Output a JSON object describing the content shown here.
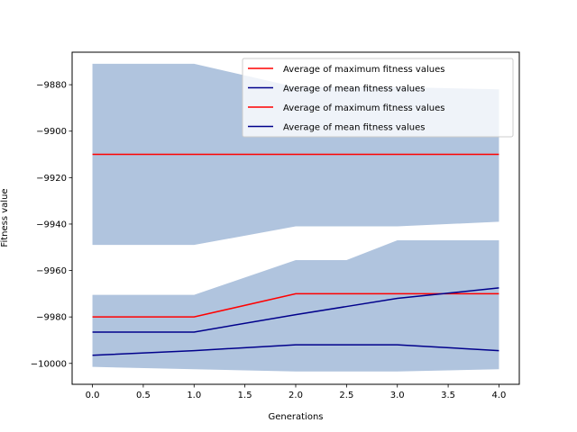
{
  "chart_data": {
    "type": "line",
    "title": "",
    "xlabel": "Generations",
    "ylabel": "Fitness value",
    "xlim": [
      -0.2,
      4.2
    ],
    "ylim": [
      -10009,
      -9866
    ],
    "grid": false,
    "legend_position": "upper right",
    "x": [
      0,
      1,
      2,
      2.5,
      3,
      4
    ],
    "x_ticks": [
      0.0,
      0.5,
      1.0,
      1.5,
      2.0,
      2.5,
      3.0,
      3.5,
      4.0
    ],
    "x_tick_labels": [
      "0.0",
      "0.5",
      "1.0",
      "1.5",
      "2.0",
      "2.5",
      "3.0",
      "3.5",
      "4.0"
    ],
    "y_ticks": [
      -10000,
      -9980,
      -9960,
      -9940,
      -9920,
      -9900,
      -9880
    ],
    "y_tick_labels": [
      "−10000",
      "−9980",
      "−9960",
      "−9940",
      "−9920",
      "−9900",
      "−9880"
    ],
    "bands": [
      {
        "color": "#b0c4de",
        "upper": [
          -9871,
          -9871,
          -9881,
          -9881,
          -9881,
          -9882
        ],
        "lower": [
          -9949,
          -9949,
          -9941,
          -9941,
          -9941,
          -9939
        ]
      },
      {
        "color": "#b0c4de",
        "upper": [
          -9970.5,
          -9970.5,
          -9955.5,
          -9955.5,
          -9947,
          -9947
        ],
        "lower": [
          -10001.5,
          -10002.5,
          -10003.5,
          -10003.5,
          -10003.5,
          -10002.5
        ]
      }
    ],
    "series": [
      {
        "name": "Average of maximum fitness values",
        "color": "#ff0000",
        "values": [
          -9910,
          -9910,
          -9910,
          -9910,
          -9910,
          -9910
        ]
      },
      {
        "name": "Average of mean fitness values",
        "color": "#00008b",
        "values": [
          -9996.5,
          -9994.5,
          -9992,
          -9992,
          -9992,
          -9994.5
        ]
      },
      {
        "name": "Average of maximum fitness values",
        "color": "#ff0000",
        "values": [
          -9980,
          -9980,
          -9970,
          -9970,
          -9970,
          -9970
        ]
      },
      {
        "name": "Average of mean fitness values",
        "color": "#00008b",
        "values": [
          -9986.5,
          -9986.5,
          -9979,
          -9975.5,
          -9972,
          -9967.5
        ]
      }
    ]
  }
}
